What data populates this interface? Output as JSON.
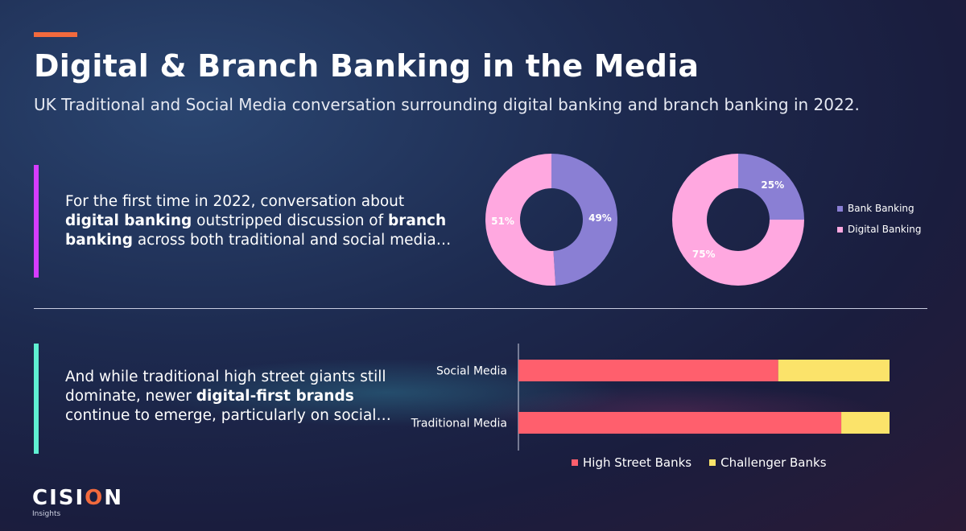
{
  "header": {
    "title": "Digital & Branch Banking in the Media",
    "subtitle": "UK Traditional and Social Media conversation surrounding digital banking and branch banking in 2022."
  },
  "section1": {
    "text_parts": [
      {
        "text": "For the first time in 2022, conversation about ",
        "bold": false
      },
      {
        "text": "digital banking",
        "bold": true
      },
      {
        "text": " outstripped discussion of ",
        "bold": false
      },
      {
        "text": "branch banking",
        "bold": true
      },
      {
        "text": " across both traditional and social media…",
        "bold": false
      }
    ]
  },
  "section2": {
    "text_parts": [
      {
        "text": "And while traditional high street giants still dominate, newer ",
        "bold": false
      },
      {
        "text": "digital-first brands",
        "bold": true
      },
      {
        "text": " continue to emerge, particularly on social…",
        "bold": false
      }
    ]
  },
  "chart_data": [
    {
      "type": "pie",
      "donut": true,
      "slices": [
        {
          "label": "Bank Banking",
          "value": 49,
          "label_text": "49%",
          "color": "#8a7fd4"
        },
        {
          "label": "Digital Banking",
          "value": 51,
          "label_text": "51%",
          "color": "#ffa8e0"
        }
      ]
    },
    {
      "type": "pie",
      "donut": true,
      "slices": [
        {
          "label": "Bank Banking",
          "value": 25,
          "label_text": "25%",
          "color": "#8a7fd4"
        },
        {
          "label": "Digital Banking",
          "value": 75,
          "label_text": "75%",
          "color": "#ffa8e0"
        }
      ],
      "legend": [
        "Bank Banking",
        "Digital Banking"
      ],
      "legend_position": "right"
    },
    {
      "type": "bar",
      "orientation": "horizontal",
      "stacked": true,
      "categories": [
        "Social Media",
        "Traditional Media"
      ],
      "xlim": [
        0,
        100
      ],
      "series": [
        {
          "name": "High Street Banks",
          "values": [
            70,
            87
          ],
          "color": "#ff5f6d"
        },
        {
          "name": "Challenger Banks",
          "values": [
            30,
            13
          ],
          "color": "#fbe36a"
        }
      ],
      "legend_position": "bottom"
    }
  ],
  "logo": {
    "brand_pre": "CISI",
    "brand_o": "O",
    "brand_post": "N",
    "sub": "Insights"
  }
}
